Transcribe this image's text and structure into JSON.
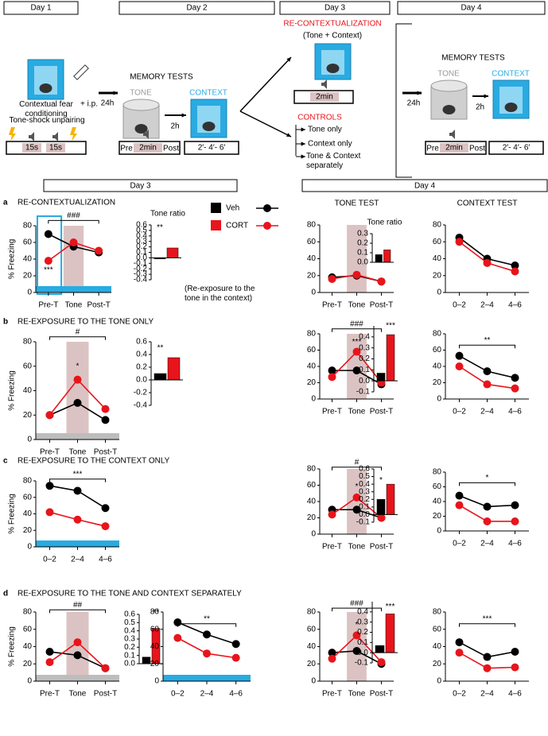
{
  "schematic": {
    "days": [
      "Day 1",
      "Day 2",
      "Day 3",
      "Day 4"
    ],
    "day1": {
      "label": "Contextual fear conditioning",
      "injection": "+ i.p.",
      "protocol": "Tone-shock unpairing",
      "blocks": [
        "15s",
        "15s"
      ]
    },
    "delays": [
      "24h",
      "24h"
    ],
    "day2": {
      "title": "MEMORY TESTS",
      "tone": "TONE",
      "context": "CONTEXT",
      "gap": "2h",
      "tone_timeline": [
        "Pre",
        "2min",
        "Post"
      ],
      "context_timeline": "2′- 4′- 6′"
    },
    "day3": {
      "title": "RE-CONTEXTUALIZATION",
      "subtitle": "(Tone + Context)",
      "timeline": "2min",
      "controls": "CONTROLS",
      "options": [
        "Tone only",
        "Context only",
        "Tone & Context separately"
      ]
    },
    "day4": {
      "title": "MEMORY TESTS",
      "tone": "TONE",
      "context": "CONTEXT",
      "gap": "2h",
      "tone_timeline": [
        "Pre",
        "2min",
        "Post"
      ],
      "context_timeline": "2′- 4′- 6′"
    }
  },
  "sections": [
    "Day 3",
    "Day 4"
  ],
  "legend": {
    "series": [
      {
        "name": "Veh",
        "color": "#000000"
      },
      {
        "name": "CORT",
        "color": "#e8141b"
      }
    ]
  },
  "panels": [
    {
      "letter": "a",
      "title": "RE-CONTEXTUALIZATION"
    },
    {
      "letter": "b",
      "title": "RE-EXPOSURE TO THE TONE ONLY"
    },
    {
      "letter": "c",
      "title": "RE-EXPOSURE TO THE CONTEXT ONLY"
    },
    {
      "letter": "d",
      "title": "RE-EXPOSURE TO THE TONE AND CONTEXT SEPARATELY"
    }
  ],
  "chart_data": [
    {
      "type": "line",
      "y_label": "% Freezing",
      "categories": [
        "Pre-T",
        "Tone",
        "Post-T"
      ],
      "series": [
        {
          "values": [
            70,
            55,
            48
          ]
        },
        {
          "values": [
            38,
            60,
            50
          ]
        }
      ],
      "ylim": [
        0,
        80
      ],
      "yticks": [
        0,
        20,
        40,
        60,
        80
      ],
      "band_color": "#dcc3c3",
      "floor_color": "#29abe2",
      "frame_color": "#29abe2",
      "annotations": [
        "###",
        "***"
      ]
    },
    {
      "type": "bar",
      "title": "Tone ratio",
      "values": [
        -0.02,
        0.18
      ],
      "ylim": [
        -0.4,
        0.6
      ],
      "yticks": [
        -0.4,
        -0.3,
        -0.2,
        -0.1,
        {
          "value": 0,
          "label": "0.0"
        },
        0.1,
        0.2,
        0.3,
        0.4,
        0.5,
        0.6
      ],
      "note": "(Re-exposure to the tone in the context)",
      "annotations": [
        "**"
      ]
    },
    {
      "type": "line",
      "title": "TONE TEST",
      "categories": [
        "Pre-T",
        "Tone",
        "Post-T"
      ],
      "series": [
        {
          "values": [
            18,
            20,
            13
          ]
        },
        {
          "values": [
            16,
            21,
            13
          ]
        }
      ],
      "ylim": [
        0,
        80
      ],
      "yticks": [
        0,
        20,
        40,
        60,
        80
      ],
      "band_color": "#dcc3c3",
      "annotations": []
    },
    {
      "type": "bar",
      "title": "Tone ratio",
      "values": [
        0.08,
        0.13
      ],
      "ylim": [
        0,
        0.3
      ],
      "yticks": [
        {
          "value": 0,
          "label": "0.0"
        },
        0.1,
        0.2,
        0.3
      ],
      "annotations": []
    },
    {
      "type": "line",
      "title": "CONTEXT TEST",
      "categories": [
        "0–2",
        "2–4",
        "4–6"
      ],
      "series": [
        {
          "values": [
            65,
            40,
            32
          ]
        },
        {
          "values": [
            60,
            35,
            25
          ]
        }
      ],
      "ylim": [
        0,
        80
      ],
      "yticks": [
        0,
        20,
        40,
        60,
        80
      ],
      "annotations": []
    },
    {
      "type": "line",
      "y_label": "% Freezing",
      "categories": [
        "Pre-T",
        "Tone",
        "Post-T"
      ],
      "series": [
        {
          "values": [
            20,
            30,
            16
          ]
        },
        {
          "values": [
            20,
            49,
            25
          ]
        }
      ],
      "ylim": [
        0,
        80
      ],
      "yticks": [
        0,
        20,
        40,
        60,
        80
      ],
      "band_color": "#dcc3c3",
      "floor_color": "#bdbdbd",
      "annotations": [
        "#",
        "*"
      ]
    },
    {
      "type": "bar",
      "values": [
        0.1,
        0.35
      ],
      "ylim": [
        -0.4,
        0.6
      ],
      "yticks": [
        -0.4,
        -0.2,
        {
          "value": 0,
          "label": "0.0"
        },
        0.2,
        0.4,
        0.6
      ],
      "annotations": [
        "**"
      ]
    },
    {
      "type": "line",
      "categories": [
        "Pre-T",
        "Tone",
        "Post-T"
      ],
      "series": [
        {
          "values": [
            35,
            35,
            18
          ]
        },
        {
          "values": [
            27,
            58,
            20
          ]
        }
      ],
      "ylim": [
        0,
        80
      ],
      "yticks": [
        0,
        20,
        40,
        60,
        80
      ],
      "band_color": "#dcc3c3",
      "annotations": [
        "###",
        "***"
      ]
    },
    {
      "type": "bar",
      "values": [
        0.07,
        0.42
      ],
      "ylim": [
        -0.1,
        0.5
      ],
      "yticks": [
        -0.1,
        {
          "value": 0,
          "label": "0.0"
        },
        0.1,
        0.2,
        0.3,
        0.4
      ],
      "annotations": [
        "***"
      ]
    },
    {
      "type": "line",
      "categories": [
        "0–2",
        "2–4",
        "4–6"
      ],
      "series": [
        {
          "values": [
            53,
            34,
            26
          ]
        },
        {
          "values": [
            40,
            18,
            13
          ]
        }
      ],
      "ylim": [
        0,
        80
      ],
      "yticks": [
        0,
        20,
        40,
        60,
        80
      ],
      "annotations": [
        "**"
      ]
    },
    {
      "type": "line",
      "y_label": "% Freezing",
      "categories": [
        "0–2",
        "2–4",
        "4–6"
      ],
      "series": [
        {
          "values": [
            74,
            68,
            47
          ]
        },
        {
          "values": [
            42,
            33,
            25
          ]
        }
      ],
      "ylim": [
        0,
        80
      ],
      "yticks": [
        0,
        20,
        40,
        60,
        80
      ],
      "floor_color": "#29abe2",
      "annotations": [
        "***"
      ]
    },
    {
      "type": "line",
      "categories": [
        "Pre-T",
        "Tone",
        "Post-T"
      ],
      "series": [
        {
          "values": [
            30,
            30,
            20
          ]
        },
        {
          "values": [
            24,
            45,
            20
          ]
        }
      ],
      "ylim": [
        0,
        80
      ],
      "yticks": [
        0,
        20,
        40,
        60,
        80
      ],
      "band_color": "#dcc3c3",
      "annotations": [
        "#",
        "*"
      ]
    },
    {
      "type": "bar",
      "values": [
        0.2,
        0.4
      ],
      "ylim": [
        -0.1,
        0.6
      ],
      "yticks": [
        -0.1,
        {
          "value": 0,
          "label": "0.0"
        },
        0.1,
        0.2,
        0.3,
        0.4,
        0.5,
        0.6
      ],
      "annotations": [
        "*"
      ]
    },
    {
      "type": "line",
      "categories": [
        "0–2",
        "2–4",
        "4–6"
      ],
      "series": [
        {
          "values": [
            48,
            33,
            35
          ]
        },
        {
          "values": [
            35,
            13,
            13
          ]
        }
      ],
      "ylim": [
        0,
        80
      ],
      "yticks": [
        0,
        20,
        40,
        60,
        80
      ],
      "annotations": [
        "*"
      ]
    },
    {
      "type": "line",
      "y_label": "% Freezing",
      "categories": [
        "Pre-T",
        "Tone",
        "Post-T"
      ],
      "series": [
        {
          "values": [
            34,
            30,
            15
          ]
        },
        {
          "values": [
            22,
            45,
            15
          ]
        }
      ],
      "ylim": [
        0,
        80
      ],
      "yticks": [
        0,
        20,
        40,
        60,
        80
      ],
      "band_color": "#dcc3c3",
      "floor_color": "#bdbdbd",
      "annotations": [
        "##"
      ]
    },
    {
      "type": "bar",
      "values": [
        0.08,
        0.43
      ],
      "ylim": [
        0,
        0.6
      ],
      "yticks": [
        {
          "value": 0,
          "label": "0.0"
        },
        0.1,
        0.2,
        0.3,
        0.4,
        0.5,
        0.6
      ],
      "annotations": [
        "**"
      ]
    },
    {
      "type": "line",
      "categories": [
        "0–2",
        "2–4",
        "4–6"
      ],
      "series": [
        {
          "values": [
            68,
            54,
            43
          ]
        },
        {
          "values": [
            50,
            32,
            27
          ]
        }
      ],
      "ylim": [
        0,
        80
      ],
      "yticks": [
        0,
        20,
        40,
        60,
        80
      ],
      "floor_color": "#29abe2",
      "annotations": [
        "**"
      ]
    },
    {
      "type": "line",
      "categories": [
        "Pre-T",
        "Tone",
        "Post-T"
      ],
      "series": [
        {
          "values": [
            33,
            35,
            20
          ]
        },
        {
          "values": [
            26,
            53,
            22
          ]
        }
      ],
      "ylim": [
        0,
        80
      ],
      "yticks": [
        0,
        20,
        40,
        60,
        80
      ],
      "band_color": "#dcc3c3",
      "annotations": [
        "###",
        "*"
      ]
    },
    {
      "type": "bar",
      "values": [
        0.07,
        0.38
      ],
      "ylim": [
        -0.1,
        0.5
      ],
      "yticks": [
        -0.1,
        {
          "value": 0,
          "label": "0.0"
        },
        0.1,
        0.2,
        0.3,
        0.4
      ],
      "annotations": [
        "***"
      ]
    },
    {
      "type": "line",
      "categories": [
        "0–2",
        "2–4",
        "4–6"
      ],
      "series": [
        {
          "values": [
            45,
            28,
            34
          ]
        },
        {
          "values": [
            33,
            15,
            16
          ]
        }
      ],
      "ylim": [
        0,
        80
      ],
      "yticks": [
        0,
        20,
        40,
        60,
        80
      ],
      "annotations": [
        "***"
      ]
    }
  ]
}
